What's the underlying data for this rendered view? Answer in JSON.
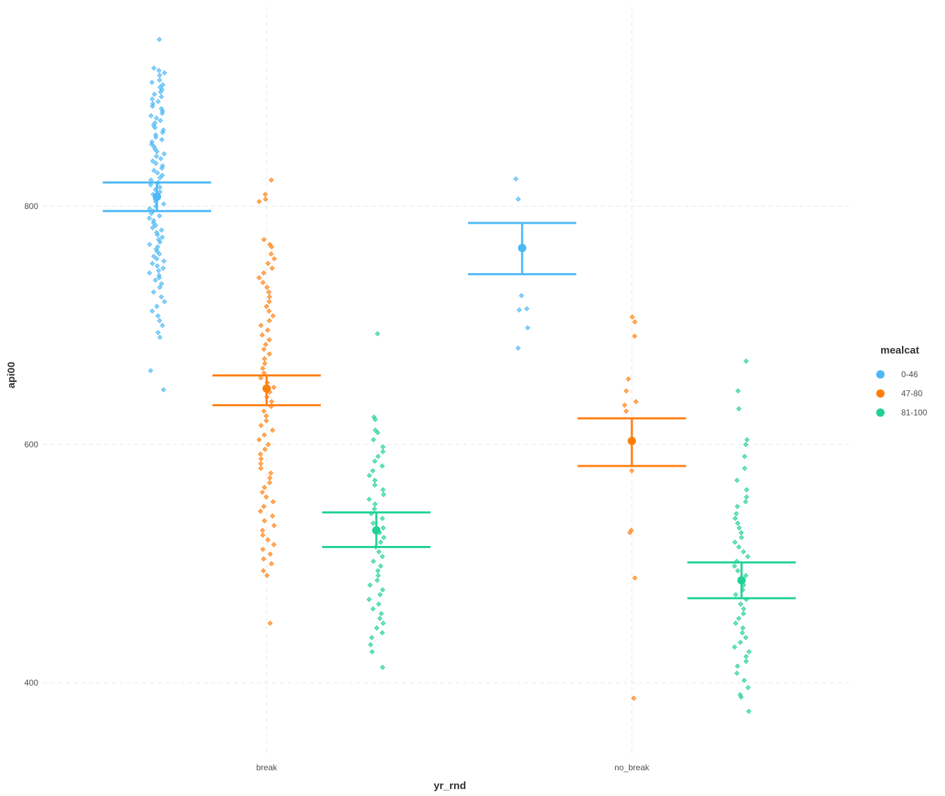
{
  "chart_data": {
    "type": "scatter",
    "xlabel": "yr_rnd",
    "ylabel": "api00",
    "categories": [
      "break",
      "no_break"
    ],
    "yticks": [
      400,
      600,
      800
    ],
    "ylim": [
      345,
      960
    ],
    "grid": true,
    "legend": {
      "title": "mealcat",
      "position": "right"
    },
    "series": [
      {
        "name": "0-46",
        "color": "#4cb8f5",
        "summary": [
          {
            "category": "break",
            "mean": 808,
            "lower": 796,
            "upper": 820
          },
          {
            "category": "no_break",
            "mean": 765,
            "lower": 743,
            "upper": 786
          }
        ],
        "points": [
          {
            "category": "break",
            "values": [
              940,
              916,
              914,
              912,
              910,
              906,
              904,
              902,
              900,
              898,
              896,
              894,
              892,
              890,
              888,
              886,
              884,
              882,
              880,
              878,
              876,
              874,
              872,
              870,
              868,
              866,
              864,
              862,
              860,
              858,
              856,
              854,
              852,
              850,
              848,
              846,
              844,
              842,
              840,
              838,
              836,
              834,
              832,
              830,
              828,
              826,
              824,
              822,
              820,
              818,
              816,
              814,
              812,
              810,
              808,
              806,
              804,
              802,
              800,
              798,
              796,
              794,
              792,
              790,
              788,
              786,
              784,
              782,
              780,
              778,
              776,
              774,
              772,
              770,
              768,
              766,
              764,
              762,
              760,
              758,
              756,
              754,
              752,
              750,
              748,
              746,
              744,
              742,
              740,
              738,
              735,
              732,
              728,
              724,
              720,
              716,
              712,
              708,
              704,
              700,
              694,
              690,
              662,
              646
            ]
          },
          {
            "category": "no_break",
            "values": [
              823,
              806,
              725,
              714,
              713,
              698,
              681
            ]
          }
        ]
      },
      {
        "name": "47-80",
        "color": "#ff7f0e",
        "summary": [
          {
            "category": "break",
            "mean": 647,
            "lower": 633,
            "upper": 658
          },
          {
            "category": "no_break",
            "mean": 603,
            "lower": 582,
            "upper": 622
          }
        ],
        "points": [
          {
            "category": "break",
            "values": [
              822,
              810,
              806,
              804,
              772,
              768,
              766,
              760,
              756,
              752,
              748,
              744,
              740,
              736,
              732,
              728,
              724,
              720,
              716,
              712,
              708,
              704,
              700,
              696,
              692,
              688,
              684,
              680,
              676,
              672,
              668,
              664,
              660,
              656,
              652,
              648,
              644,
              640,
              636,
              632,
              628,
              624,
              620,
              616,
              612,
              608,
              604,
              600,
              596,
              592,
              588,
              584,
              580,
              576,
              572,
              568,
              564,
              560,
              556,
              552,
              548,
              544,
              540,
              536,
              532,
              528,
              524,
              520,
              516,
              512,
              508,
              504,
              500,
              494,
              490,
              450
            ]
          },
          {
            "category": "no_break",
            "values": [
              707,
              703,
              691,
              655,
              645,
              636,
              633,
              628,
              578,
              528,
              526,
              488,
              387
            ]
          }
        ]
      },
      {
        "name": "81-100",
        "color": "#1fd197",
        "summary": [
          {
            "category": "break",
            "mean": 528,
            "lower": 514,
            "upper": 543
          },
          {
            "category": "no_break",
            "mean": 486,
            "lower": 471,
            "upper": 501
          }
        ],
        "points": [
          {
            "category": "break",
            "values": [
              693,
              623,
              621,
              612,
              610,
              604,
              598,
              594,
              590,
              586,
              582,
              578,
              574,
              570,
              566,
              562,
              558,
              554,
              550,
              546,
              542,
              538,
              534,
              530,
              526,
              522,
              518,
              514,
              510,
              506,
              502,
              498,
              494,
              490,
              486,
              482,
              478,
              474,
              470,
              466,
              462,
              458,
              454,
              450,
              446,
              442,
              438,
              432,
              426,
              413
            ]
          },
          {
            "category": "no_break",
            "values": [
              670,
              645,
              630,
              604,
              600,
              590,
              580,
              570,
              562,
              556,
              552,
              548,
              542,
              538,
              534,
              530,
              526,
              522,
              518,
              514,
              510,
              506,
              502,
              498,
              494,
              490,
              486,
              482,
              478,
              474,
              470,
              466,
              462,
              458,
              454,
              450,
              446,
              442,
              438,
              434,
              430,
              426,
              422,
              418,
              414,
              408,
              402,
              396,
              390,
              388,
              376
            ]
          }
        ]
      }
    ]
  }
}
